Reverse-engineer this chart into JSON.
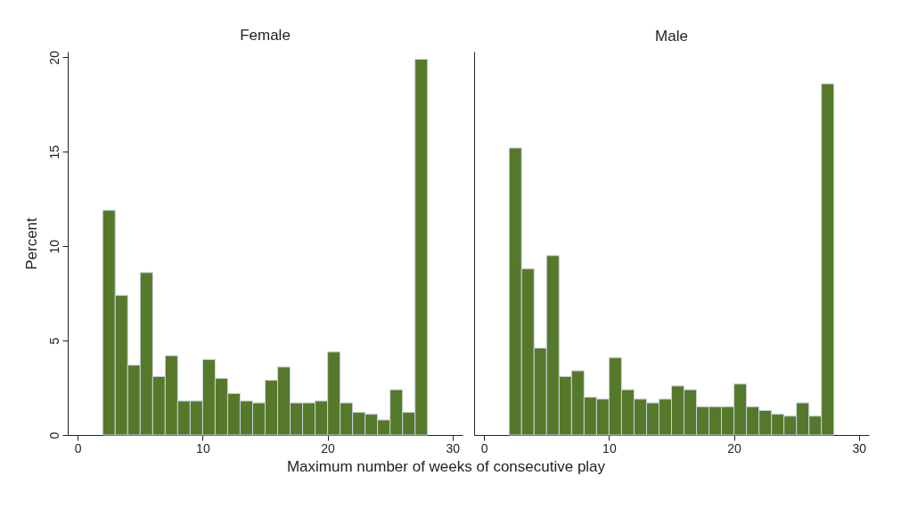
{
  "chart_data": [
    {
      "type": "histogram",
      "title": "Female",
      "ylabel": "Percent",
      "xlabel": "Maximum number of weeks of consecutive play",
      "color": "#56782a",
      "bins": [
        2,
        3,
        4,
        5,
        6,
        7,
        8,
        9,
        10,
        11,
        12,
        13,
        14,
        15,
        16,
        17,
        18,
        19,
        20,
        21,
        22,
        23,
        24,
        25,
        26,
        27,
        28
      ],
      "values": [
        11.9,
        7.4,
        3.7,
        8.6,
        3.1,
        4.2,
        1.8,
        1.8,
        4.0,
        3.0,
        2.2,
        1.8,
        1.7,
        2.9,
        3.6,
        1.7,
        1.7,
        1.8,
        4.4,
        1.7,
        1.2,
        1.1,
        0.8,
        2.4,
        1.2,
        19.9
      ],
      "xlim": [
        -0.8,
        30.8
      ],
      "xticks": [
        0,
        10,
        20,
        30
      ],
      "ylim": [
        0,
        20.3
      ],
      "yticks": [
        0,
        5,
        10,
        15,
        20
      ],
      "grid": false
    },
    {
      "type": "histogram",
      "title": "Male",
      "color": "#56782a",
      "bins": [
        2,
        3,
        4,
        5,
        6,
        7,
        8,
        9,
        10,
        11,
        12,
        13,
        14,
        15,
        16,
        17,
        18,
        19,
        20,
        21,
        22,
        23,
        24,
        25,
        26,
        27,
        28
      ],
      "values": [
        15.2,
        8.8,
        4.6,
        9.5,
        3.1,
        3.4,
        2.0,
        1.9,
        4.1,
        2.4,
        1.9,
        1.7,
        1.9,
        2.6,
        2.4,
        1.5,
        1.5,
        1.5,
        2.7,
        1.5,
        1.3,
        1.1,
        1.0,
        1.7,
        1.0,
        18.6
      ],
      "xlim": [
        -0.8,
        30.8
      ],
      "xticks": [
        0,
        10,
        20,
        30
      ],
      "ylim": [
        0,
        20.3
      ],
      "yticks": [
        0,
        5,
        10,
        15,
        20
      ],
      "grid": false,
      "tick_labels": "x"
    }
  ]
}
